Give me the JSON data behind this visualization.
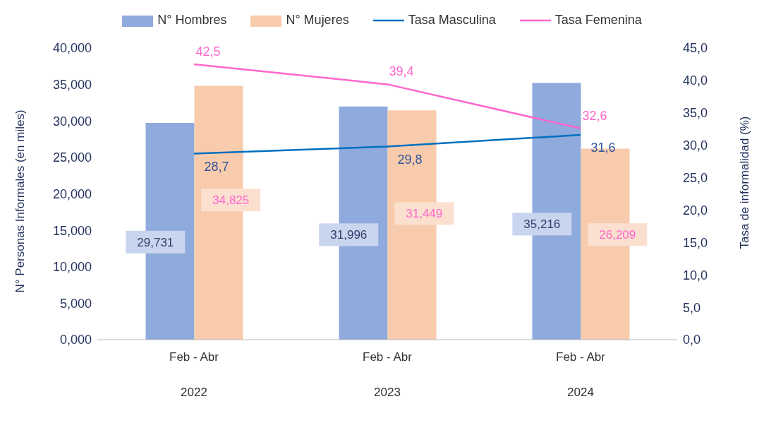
{
  "chart_data": {
    "type": "bar",
    "categories": [
      "Feb - Abr\n2022",
      "Feb - Abr\n2023",
      "Feb - Abr\n2024"
    ],
    "ylabel": "N° Personas Informales (en miles)",
    "y2label": "Tasa de informalidad (%)",
    "ylim": [
      0,
      40
    ],
    "yticks": [
      {
        "value": 0,
        "label": "0,000"
      },
      {
        "value": 5,
        "label": "5,000"
      },
      {
        "value": 10,
        "label": "10,000"
      },
      {
        "value": 15,
        "label": "15,000"
      },
      {
        "value": 20,
        "label": "20,000"
      },
      {
        "value": 25,
        "label": "25,000"
      },
      {
        "value": 30,
        "label": "30,000"
      },
      {
        "value": 35,
        "label": "35,000"
      },
      {
        "value": 40,
        "label": "40,000"
      }
    ],
    "y2lim": [
      0,
      45
    ],
    "y2ticks": [
      {
        "value": 0,
        "label": "0,0"
      },
      {
        "value": 5,
        "label": "5,0"
      },
      {
        "value": 10,
        "label": "10,0"
      },
      {
        "value": 15,
        "label": "15,0"
      },
      {
        "value": 20,
        "label": "20,0"
      },
      {
        "value": 25,
        "label": "25,0"
      },
      {
        "value": 30,
        "label": "30,0"
      },
      {
        "value": 35,
        "label": "35,0"
      },
      {
        "value": 40,
        "label": "40,0"
      },
      {
        "value": 45,
        "label": "45,0"
      }
    ],
    "legend": "top",
    "marker": "none",
    "series": [
      {
        "name": "N° Hombres",
        "color": "#8faadc",
        "values": [
          29.731,
          31.996,
          35.216
        ],
        "value_labels": [
          "29,731",
          "31,996",
          "35,216"
        ]
      },
      {
        "name": "N° Mujeres",
        "color": "#f8cbad",
        "values": [
          34.825,
          31.449,
          26.209
        ],
        "value_labels": [
          "34,825",
          "31,449",
          "26,209"
        ]
      },
      {
        "name": "Tasa Masculina",
        "type": "line",
        "axis": "y2",
        "color": "#0070c0",
        "values": [
          28.7,
          29.8,
          31.6
        ],
        "value_labels": [
          "28,7",
          "29,8",
          "31,6"
        ]
      },
      {
        "name": "Tasa Femenina",
        "type": "line",
        "axis": "y2",
        "color": "#ff66cc",
        "values": [
          42.5,
          39.4,
          32.6
        ],
        "value_labels": [
          "42,5",
          "39,4",
          "32,6"
        ]
      }
    ]
  }
}
